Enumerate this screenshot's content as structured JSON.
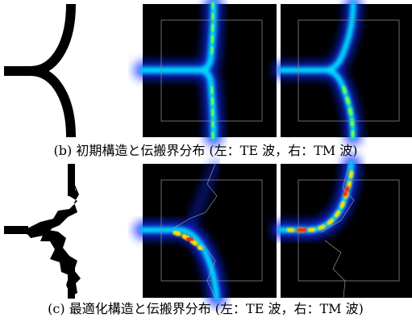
{
  "figures": [
    {
      "caption": "(b) 初期構造と伝搬界分布 (左：TE 波，右：TM 波)"
    },
    {
      "caption": "(c) 最適化構造と伝搬界分布 (左：TE 波，右：TM 波)"
    }
  ]
}
